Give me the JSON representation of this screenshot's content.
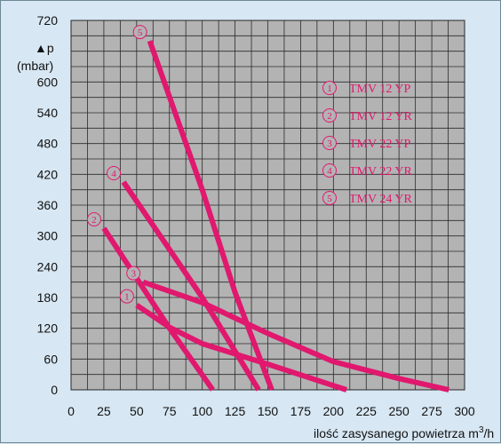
{
  "chart_data": {
    "type": "line",
    "ylabel_symbol": "▲p",
    "ylabel_unit": "(mbar)",
    "xlabel": "ilość zasysanego powietrza m",
    "xlabel_sup": "3",
    "xlabel_tail": "/h",
    "xlim": [
      0,
      300
    ],
    "ylim": [
      0,
      720
    ],
    "x_ticks": [
      0,
      25,
      50,
      75,
      100,
      125,
      150,
      175,
      200,
      225,
      250,
      275,
      300
    ],
    "y_ticks": [
      0,
      60,
      120,
      180,
      240,
      300,
      360,
      420,
      480,
      540,
      600,
      720
    ],
    "grid": true,
    "legend_position": "top-right",
    "line_color": "#e0186e",
    "series": [
      {
        "marker": "1",
        "name": "TMV 12 YP",
        "x": [
          50,
          75,
          100,
          150,
          210
        ],
        "y": [
          165,
          122,
          90,
          50,
          0
        ]
      },
      {
        "marker": "2",
        "name": "TMV 12 YR",
        "x": [
          25,
          75,
          108
        ],
        "y": [
          315,
          120,
          0
        ]
      },
      {
        "marker": "3",
        "name": "TMV 22 YP",
        "x": [
          55,
          100,
          150,
          200,
          250,
          288
        ],
        "y": [
          210,
          170,
          110,
          55,
          22,
          0
        ]
      },
      {
        "marker": "4",
        "name": "TMV 22 YR",
        "x": [
          40,
          100,
          143
        ],
        "y": [
          405,
          180,
          0
        ]
      },
      {
        "marker": "5",
        "name": "TMV 24 YR",
        "x": [
          60,
          100,
          125,
          153
        ],
        "y": [
          680,
          390,
          190,
          0
        ]
      }
    ]
  }
}
